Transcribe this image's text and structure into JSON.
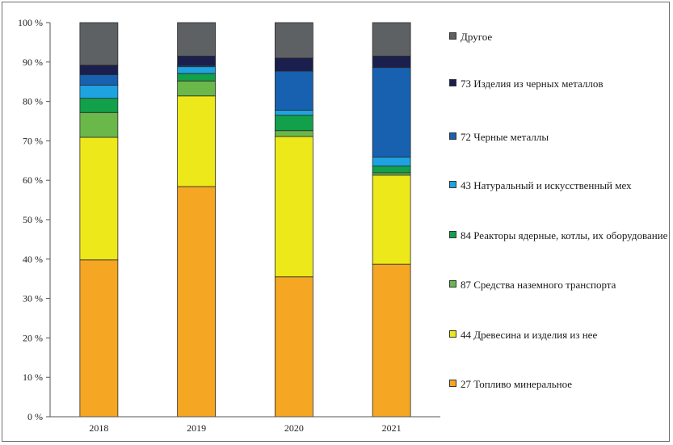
{
  "chart_data": {
    "type": "bar",
    "stacked": true,
    "percent": true,
    "categories": [
      "2018",
      "2019",
      "2020",
      "2021"
    ],
    "ylim": [
      0,
      100
    ],
    "y_ticks": [
      "0 %",
      "10 %",
      "20 %",
      "30 %",
      "40 %",
      "50 %",
      "60 %",
      "70 %",
      "80 %",
      "90 %",
      "100 %"
    ],
    "series": [
      {
        "name": "27 Топливо минеральное",
        "color": "#F5A623",
        "values": [
          39.8,
          58.4,
          35.5,
          38.7
        ]
      },
      {
        "name": "44 Древесина и изделия из нее",
        "color": "#EDE81A",
        "values": [
          31.1,
          23.0,
          35.6,
          22.6
        ]
      },
      {
        "name": "87 Средства наземного транспорта",
        "color": "#6AB74A",
        "values": [
          6.3,
          3.8,
          1.5,
          0.6
        ]
      },
      {
        "name": "84 Реакторы ядерные, котлы, их оборудование",
        "color": "#12A04A",
        "values": [
          3.6,
          1.9,
          3.9,
          1.7
        ]
      },
      {
        "name": "43 Натуральный и искусственный мех",
        "color": "#1EA3E0",
        "values": [
          3.3,
          1.7,
          1.3,
          2.3
        ]
      },
      {
        "name": "72 Черные металлы",
        "color": "#1761B0",
        "values": [
          2.7,
          0.3,
          9.9,
          22.7
        ]
      },
      {
        "name": "73 Изделия из черных металлов",
        "color": "#1A1F4E",
        "values": [
          2.4,
          2.4,
          3.3,
          2.9
        ]
      },
      {
        "name": "Другое",
        "color": "#5E6163",
        "values": [
          10.8,
          8.5,
          9.0,
          8.5
        ]
      }
    ],
    "legend_position": "right",
    "grid": false
  }
}
